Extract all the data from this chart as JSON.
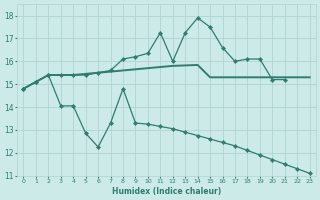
{
  "xlabel": "Humidex (Indice chaleur)",
  "x": [
    0,
    1,
    2,
    3,
    4,
    5,
    6,
    7,
    8,
    9,
    10,
    11,
    12,
    13,
    14,
    15,
    16,
    17,
    18,
    19,
    20,
    21,
    22,
    23
  ],
  "line1_x": [
    0,
    1,
    2,
    3,
    4,
    5,
    6,
    7,
    8,
    9,
    10,
    11,
    12,
    13,
    14,
    15,
    16,
    17,
    18,
    19,
    20,
    21
  ],
  "line1_y": [
    14.8,
    15.1,
    15.4,
    15.4,
    15.4,
    15.4,
    15.5,
    15.6,
    16.1,
    16.2,
    16.35,
    17.25,
    16.0,
    17.25,
    17.9,
    17.5,
    16.6,
    16.0,
    16.1,
    16.1,
    15.2,
    15.2
  ],
  "line2_x": [
    0,
    1,
    2,
    3,
    4,
    5,
    6,
    7,
    8,
    9,
    10,
    11,
    12,
    13,
    14,
    15,
    16,
    17,
    18,
    19,
    20,
    21,
    22,
    23
  ],
  "line2_y": [
    14.8,
    15.1,
    15.4,
    14.05,
    14.05,
    12.85,
    12.25,
    13.3,
    14.8,
    13.3,
    13.25,
    13.15,
    13.05,
    12.9,
    12.75,
    12.6,
    12.45,
    12.3,
    12.1,
    11.9,
    11.7,
    11.5,
    11.3,
    11.1
  ],
  "line3_x": [
    0,
    1,
    2,
    3,
    4,
    5,
    6,
    7,
    8,
    9,
    10,
    11,
    12,
    13,
    14,
    15,
    16,
    17,
    18,
    19,
    20,
    21,
    22,
    23
  ],
  "line3_y": [
    14.8,
    15.1,
    15.4,
    15.4,
    15.4,
    15.45,
    15.5,
    15.55,
    15.6,
    15.65,
    15.7,
    15.75,
    15.8,
    15.82,
    15.84,
    15.3,
    15.3,
    15.3,
    15.3,
    15.3,
    15.3,
    15.3,
    15.3,
    15.3
  ],
  "color": "#2e7d6e",
  "bg_color": "#cceae8",
  "grid_color": "#b0d4d0",
  "ylim": [
    11,
    18.5
  ],
  "xlim": [
    -0.5,
    23.5
  ],
  "yticks": [
    11,
    12,
    13,
    14,
    15,
    16,
    17,
    18
  ],
  "xticks": [
    0,
    1,
    2,
    3,
    4,
    5,
    6,
    7,
    8,
    9,
    10,
    11,
    12,
    13,
    14,
    15,
    16,
    17,
    18,
    19,
    20,
    21,
    22,
    23
  ]
}
